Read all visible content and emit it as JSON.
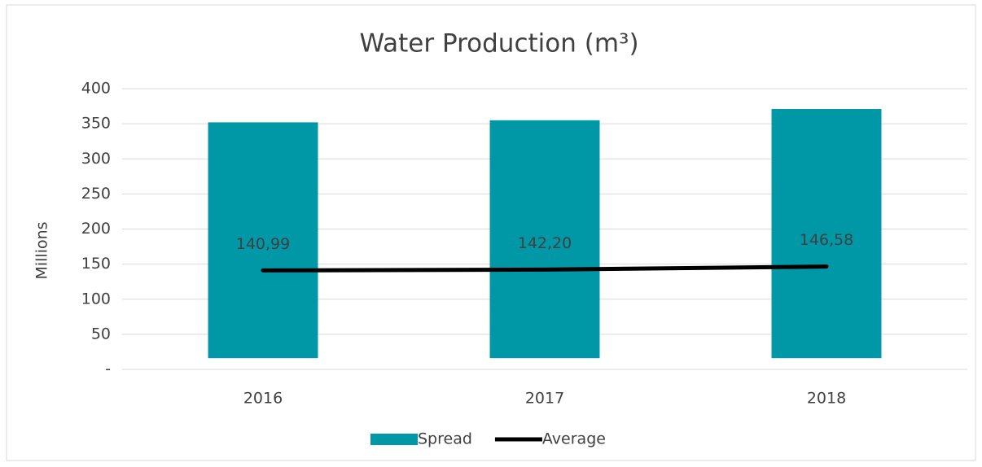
{
  "chart_data": {
    "type": "bar-line",
    "title": "Water Production (m³)",
    "y_label": "Millions",
    "categories": [
      "2016",
      "2017",
      "2018"
    ],
    "series": [
      {
        "name": "Spread",
        "type": "range-bar",
        "color": "#0097a7",
        "values": [
          [
            16,
            352
          ],
          [
            16,
            355
          ],
          [
            16,
            371
          ]
        ]
      },
      {
        "name": "Average",
        "type": "line",
        "color": "#000000",
        "values": [
          140.99,
          142.2,
          146.58
        ],
        "value_labels": [
          "140,99",
          "142,20",
          "146,58"
        ]
      }
    ],
    "ylim": [
      0,
      400
    ],
    "yticks": [
      {
        "value": 0,
        "label": "-"
      },
      50,
      100,
      150,
      200,
      250,
      300,
      350,
      400
    ],
    "grid": true,
    "legend": "bottom"
  }
}
